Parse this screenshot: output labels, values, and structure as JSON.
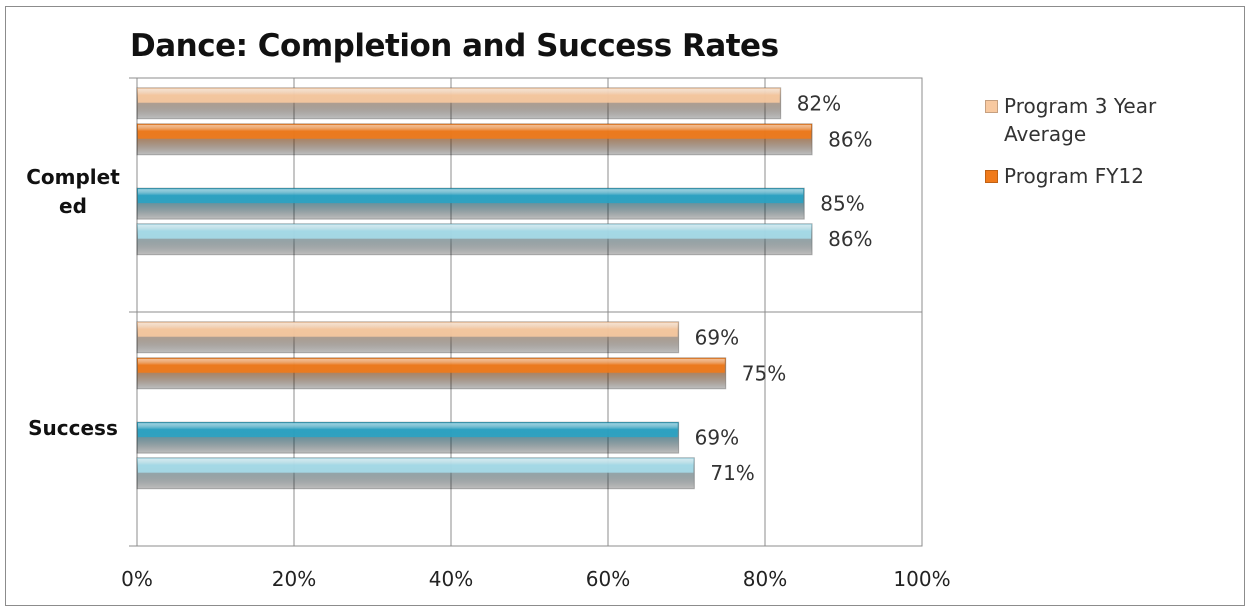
{
  "chart_data": {
    "type": "bar",
    "orientation": "horizontal",
    "title": "Dance: Completion and Success Rates",
    "categories": [
      "Complet\ned",
      "Success"
    ],
    "series": [
      {
        "name": "Program 3 Year Average",
        "values": [
          82,
          69
        ],
        "labels": [
          "82%",
          "69%"
        ],
        "color": "#f8c9a0"
      },
      {
        "name": "Program FY12",
        "values": [
          86,
          75
        ],
        "labels": [
          "86%",
          "75%"
        ],
        "color": "#f07a1a"
      },
      {
        "values": [
          85,
          69
        ],
        "labels": [
          "85%",
          "69%"
        ],
        "color": "#2aa3c4"
      },
      {
        "values": [
          86,
          71
        ],
        "labels": [
          "86%",
          "71%"
        ],
        "color": "#a6dcea"
      }
    ],
    "xlim": [
      0,
      100
    ],
    "xticks": [
      "0%",
      "20%",
      "40%",
      "60%",
      "80%",
      "100%"
    ],
    "grid": true,
    "legend_position": "right"
  }
}
